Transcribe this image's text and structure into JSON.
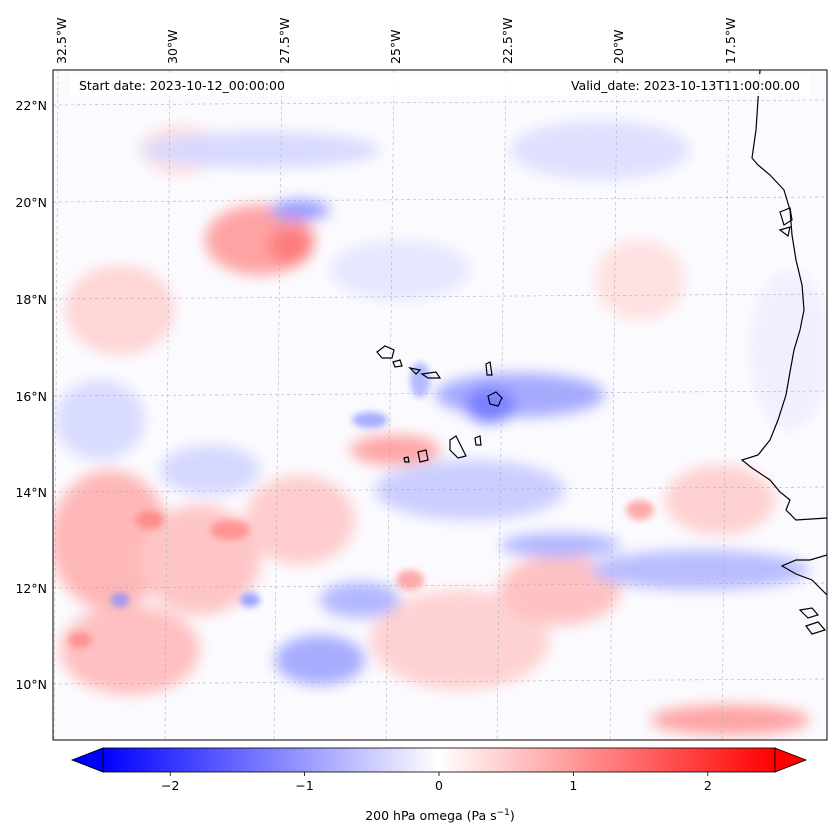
{
  "header": {
    "start_date": "Start date: 2023-10-12_00:00:00",
    "valid_date": "Valid_date: 2023-10-13T11:00:00.00"
  },
  "map": {
    "lon_range": [
      -33.0,
      -16.0
    ],
    "lat_range": [
      8.8,
      22.8
    ],
    "top_lon_labels": [
      {
        "lon": -32.5,
        "text": "32.5°W"
      },
      {
        "lon": -30.0,
        "text": "30°W"
      },
      {
        "lon": -27.5,
        "text": "27.5°W"
      },
      {
        "lon": -25.0,
        "text": "25°W"
      },
      {
        "lon": -22.5,
        "text": "22.5°W"
      },
      {
        "lon": -20.0,
        "text": "20°W"
      },
      {
        "lon": -17.5,
        "text": "17.5°W"
      }
    ],
    "left_lat_labels": [
      {
        "lat": 22,
        "text": "22°N"
      },
      {
        "lat": 20,
        "text": "20°N"
      },
      {
        "lat": 18,
        "text": "18°N"
      },
      {
        "lat": 16,
        "text": "16°N"
      },
      {
        "lat": 14,
        "text": "14°N"
      },
      {
        "lat": 12,
        "text": "12°N"
      },
      {
        "lat": 10,
        "text": "10°N"
      }
    ],
    "field_colors": {
      "positive": "#ff0000",
      "negative": "#0000ff",
      "neutral": "#ffffff"
    }
  },
  "colorbar": {
    "label_prefix": "200 hPa omega (Pa s",
    "label_sup": "−1",
    "label_suffix": ")",
    "ticks": [
      {
        "value": -2,
        "text": "−2"
      },
      {
        "value": -1,
        "text": "−1"
      },
      {
        "value": 0,
        "text": "0"
      },
      {
        "value": 1,
        "text": "1"
      },
      {
        "value": 2,
        "text": "2"
      }
    ],
    "range": [
      -2.5,
      2.5
    ],
    "extend": "both"
  }
}
